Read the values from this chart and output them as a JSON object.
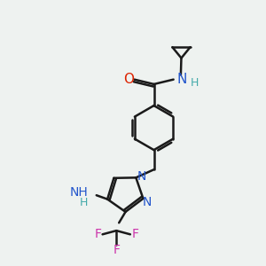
{
  "bg_color": "#eef2f0",
  "line_color": "#1a1a1a",
  "bond_width": 1.8,
  "font_size": 10,
  "colors": {
    "O": "#dd2200",
    "N": "#2255cc",
    "F": "#cc33aa",
    "H": "#44aaaa",
    "C": "#1a1a1a"
  }
}
